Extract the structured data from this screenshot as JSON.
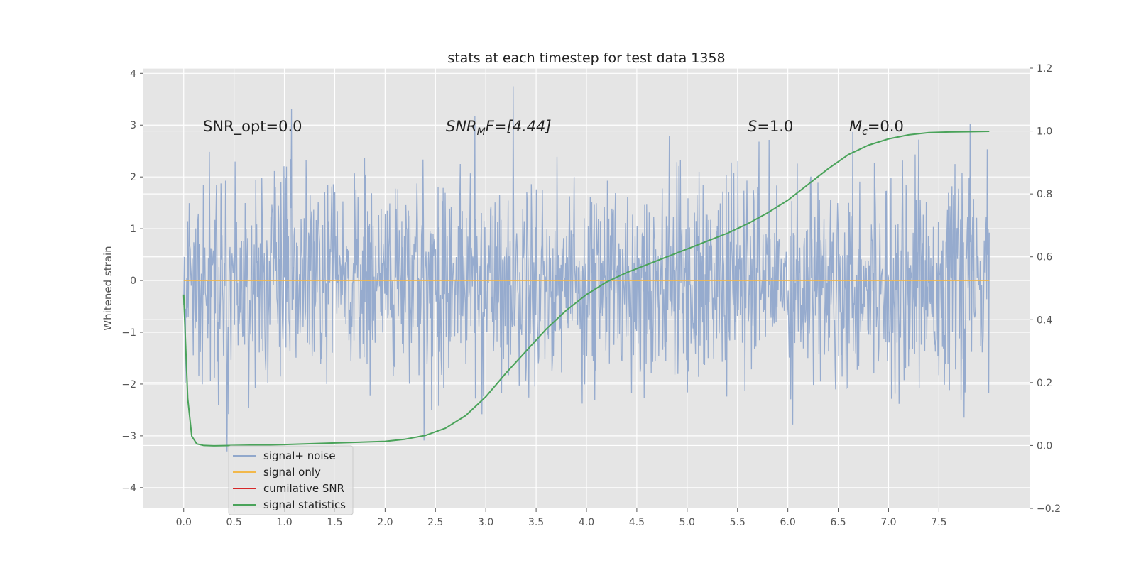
{
  "chart_data": {
    "type": "line",
    "title": "stats at each timestep for test data 1358",
    "xlabel": "",
    "ylabel": "Whitened strain",
    "xlim": [
      -0.4,
      8.4
    ],
    "ylim": [
      -4.4,
      4.1
    ],
    "y2lim": [
      -0.2,
      1.2
    ],
    "x_ticks": [
      "0.0",
      "0.5",
      "1.0",
      "1.5",
      "2.0",
      "2.5",
      "3.0",
      "3.5",
      "4.0",
      "4.5",
      "5.0",
      "5.5",
      "6.0",
      "6.5",
      "7.0",
      "7.5"
    ],
    "y_ticks": [
      "4",
      "3",
      "2",
      "1",
      "0",
      "−1",
      "−2",
      "−3",
      "−4"
    ],
    "y2_ticks": [
      "1.2",
      "1.0",
      "0.8",
      "0.6",
      "0.4",
      "0.2",
      "0.0",
      "−0.2"
    ],
    "grid": true,
    "legend_position": "lower-left",
    "annotations": {
      "snr_opt": "SNR_opt=0.0",
      "snr_mf_main": "SNR",
      "snr_mf_sub": "M",
      "snr_mf_tail": "F=[4.44]",
      "s_main": "S",
      "s_tail": "=1.0",
      "mc_main": "M",
      "mc_sub": "c",
      "mc_tail": "=0.0"
    },
    "series": [
      {
        "name": "signal+ noise",
        "color": "#91a8cc",
        "x_range": [
          0.0,
          8.0
        ],
        "n_points": 1600,
        "amplitude_range": [
          -3.3,
          3.75
        ],
        "note_values": "whitened gaussian noise, std approx 1.0"
      },
      {
        "name": "signal only",
        "color": "#f2b84b",
        "x": [
          0.0,
          8.0
        ],
        "values": [
          0.0,
          0.0
        ]
      },
      {
        "name": "cumilative SNR",
        "color": "#d62728",
        "x": [],
        "values": []
      },
      {
        "name": "signal statistics",
        "color": "#4aa35a",
        "axis": "right",
        "x": [
          0.0,
          0.04,
          0.08,
          0.13,
          0.2,
          0.3,
          0.5,
          1.0,
          1.5,
          2.0,
          2.2,
          2.4,
          2.6,
          2.8,
          3.0,
          3.2,
          3.4,
          3.6,
          3.8,
          4.0,
          4.2,
          4.4,
          4.6,
          4.8,
          5.0,
          5.2,
          5.4,
          5.6,
          5.8,
          6.0,
          6.2,
          6.4,
          6.6,
          6.8,
          7.0,
          7.2,
          7.4,
          7.6,
          7.8,
          8.0
        ],
        "values": [
          0.48,
          0.15,
          0.03,
          0.005,
          0.0,
          -0.001,
          0.0,
          0.003,
          0.008,
          0.013,
          0.02,
          0.032,
          0.055,
          0.095,
          0.155,
          0.23,
          0.3,
          0.37,
          0.43,
          0.48,
          0.52,
          0.55,
          0.575,
          0.6,
          0.625,
          0.65,
          0.675,
          0.705,
          0.74,
          0.78,
          0.83,
          0.88,
          0.925,
          0.955,
          0.975,
          0.988,
          0.995,
          0.997,
          0.998,
          0.999
        ]
      }
    ]
  }
}
